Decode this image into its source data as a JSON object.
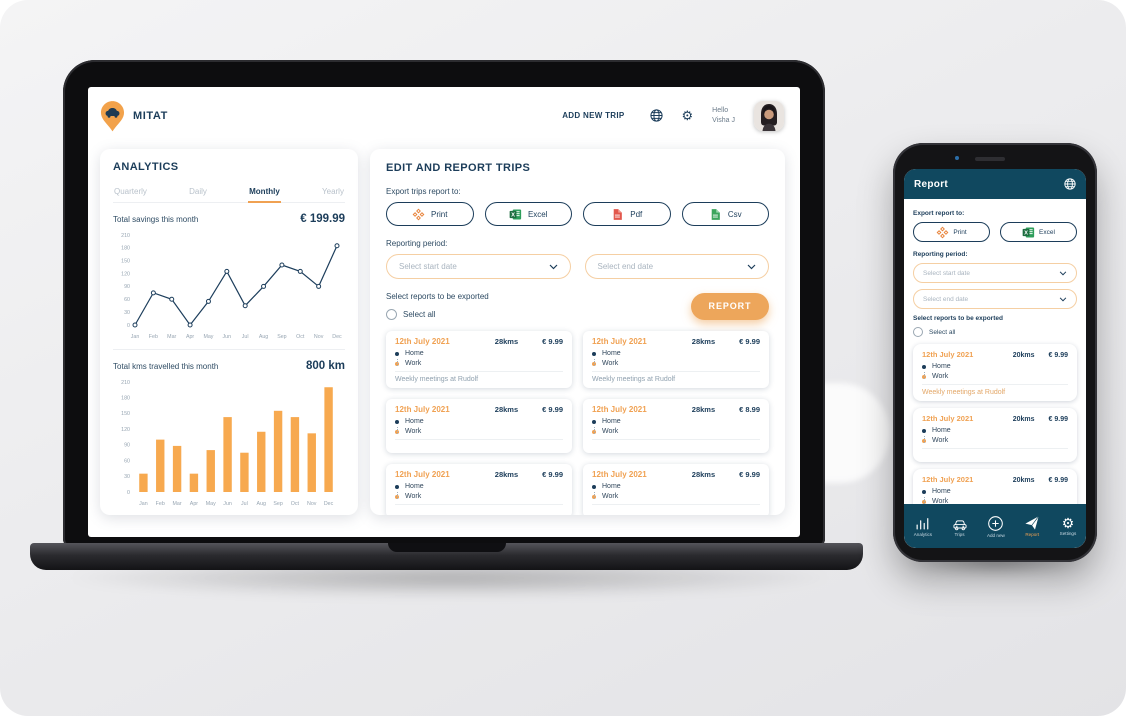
{
  "colors": {
    "navy": "#1C3D5A",
    "orange": "#F0A152",
    "orange_border": "#F5CFA3",
    "bar_orange": "#F7A94F",
    "phone_teal": "#10485F",
    "line": "#1D3E5C"
  },
  "chart_data": [
    {
      "type": "line",
      "title": "Total savings this month",
      "value_label": "€ 199.99",
      "categories": [
        "Jan",
        "Feb",
        "Mar",
        "Apr",
        "May",
        "Jun",
        "Jul",
        "Aug",
        "Sep",
        "Oct",
        "Nov",
        "Dec"
      ],
      "values": [
        0,
        75,
        60,
        0,
        55,
        125,
        45,
        90,
        140,
        125,
        90,
        185
      ],
      "ylim": [
        0,
        210
      ],
      "yticks": [
        0,
        30,
        60,
        90,
        120,
        150,
        180,
        210
      ],
      "grid": false,
      "xlabel": "",
      "ylabel": ""
    },
    {
      "type": "bar",
      "title": "Total kms travelled this month",
      "value_label": "800 km",
      "categories": [
        "Jan",
        "Feb",
        "Mar",
        "Apr",
        "May",
        "Jun",
        "Jul",
        "Aug",
        "Sep",
        "Oct",
        "Nov",
        "Dec"
      ],
      "values": [
        35,
        100,
        88,
        35,
        80,
        143,
        75,
        115,
        155,
        143,
        112,
        200
      ],
      "ylim": [
        0,
        210
      ],
      "yticks": [
        0,
        30,
        60,
        90,
        120,
        150,
        180,
        210
      ],
      "grid": false,
      "xlabel": "",
      "ylabel": ""
    }
  ],
  "laptop": {
    "header": {
      "brand": "MITAT",
      "add_new_trip": "ADD NEW TRIP",
      "greeting_line1": "Hello",
      "greeting_line2": "Visha J"
    },
    "analytics": {
      "title": "ANALYTICS",
      "tabs": [
        {
          "label": "Quarterly",
          "active": false
        },
        {
          "label": "Daily",
          "active": false
        },
        {
          "label": "Monthly",
          "active": true
        },
        {
          "label": "Yearly",
          "active": false
        }
      ],
      "savings_label": "Total savings this month",
      "savings_value": "€ 199.99",
      "kms_label": "Total kms travelled this month",
      "kms_value": "800 km"
    },
    "report_panel": {
      "title": "EDIT AND REPORT TRIPS",
      "export_label": "Export trips report to:",
      "export_buttons": [
        {
          "label": "Print",
          "icon": "printer-icon"
        },
        {
          "label": "Excel",
          "icon": "excel-icon"
        },
        {
          "label": "Pdf",
          "icon": "pdf-icon"
        },
        {
          "label": "Csv",
          "icon": "csv-icon"
        }
      ],
      "period_label": "Reporting period:",
      "start_placeholder": "Select start date",
      "end_placeholder": "Select end date",
      "select_reports_label": "Select reports to be exported",
      "select_all_label": "Select all",
      "report_button": "REPORT",
      "trips": [
        {
          "date": "12th July 2021",
          "distance": "28kms",
          "price": "€ 9.99",
          "from": "Home",
          "to": "Work",
          "note": "Weekly meetings at Rudolf"
        },
        {
          "date": "12th July 2021",
          "distance": "28kms",
          "price": "€ 9.99",
          "from": "Home",
          "to": "Work",
          "note": "Weekly meetings at Rudolf"
        },
        {
          "date": "12th July 2021",
          "distance": "28kms",
          "price": "€ 9.99",
          "from": "Home",
          "to": "Work",
          "note": ""
        },
        {
          "date": "12th July 2021",
          "distance": "28kms",
          "price": "€ 8.99",
          "from": "Home",
          "to": "Work",
          "note": ""
        },
        {
          "date": "12th July 2021",
          "distance": "28kms",
          "price": "€ 9.99",
          "from": "Home",
          "to": "Work",
          "note": ""
        },
        {
          "date": "12th July 2021",
          "distance": "28kms",
          "price": "€ 9.99",
          "from": "Home",
          "to": "Work",
          "note": ""
        }
      ]
    }
  },
  "phone": {
    "header": {
      "title": "Report"
    },
    "export_label": "Export report to:",
    "export_buttons": [
      {
        "label": "Print",
        "icon": "printer-icon"
      },
      {
        "label": "Excel",
        "icon": "excel-icon"
      }
    ],
    "period_label": "Reporting period:",
    "start_placeholder": "Select start date",
    "end_placeholder": "Select end date",
    "select_reports_label": "Select reports to be exported",
    "select_all_label": "Select all",
    "trips": [
      {
        "date": "12th July 2021",
        "distance": "20kms",
        "price": "€ 9.99",
        "from": "Home",
        "to": "Work",
        "note": "Weekly meetings at Rudolf"
      },
      {
        "date": "12th July 2021",
        "distance": "20kms",
        "price": "€ 9.99",
        "from": "Home",
        "to": "Work",
        "note": ""
      },
      {
        "date": "12th July 2021",
        "distance": "20kms",
        "price": "€ 9.99",
        "from": "Home",
        "to": "Work",
        "note": ""
      }
    ],
    "nav": [
      {
        "label": "Analytics",
        "icon": "bar-chart-icon",
        "active": false
      },
      {
        "label": "Trips",
        "icon": "car-icon",
        "active": false
      },
      {
        "label": "Add new",
        "icon": "plus-icon",
        "active": false
      },
      {
        "label": "Report",
        "icon": "paper-plane-icon",
        "active": true
      },
      {
        "label": "Settings",
        "icon": "gear-icon",
        "active": false
      }
    ]
  }
}
